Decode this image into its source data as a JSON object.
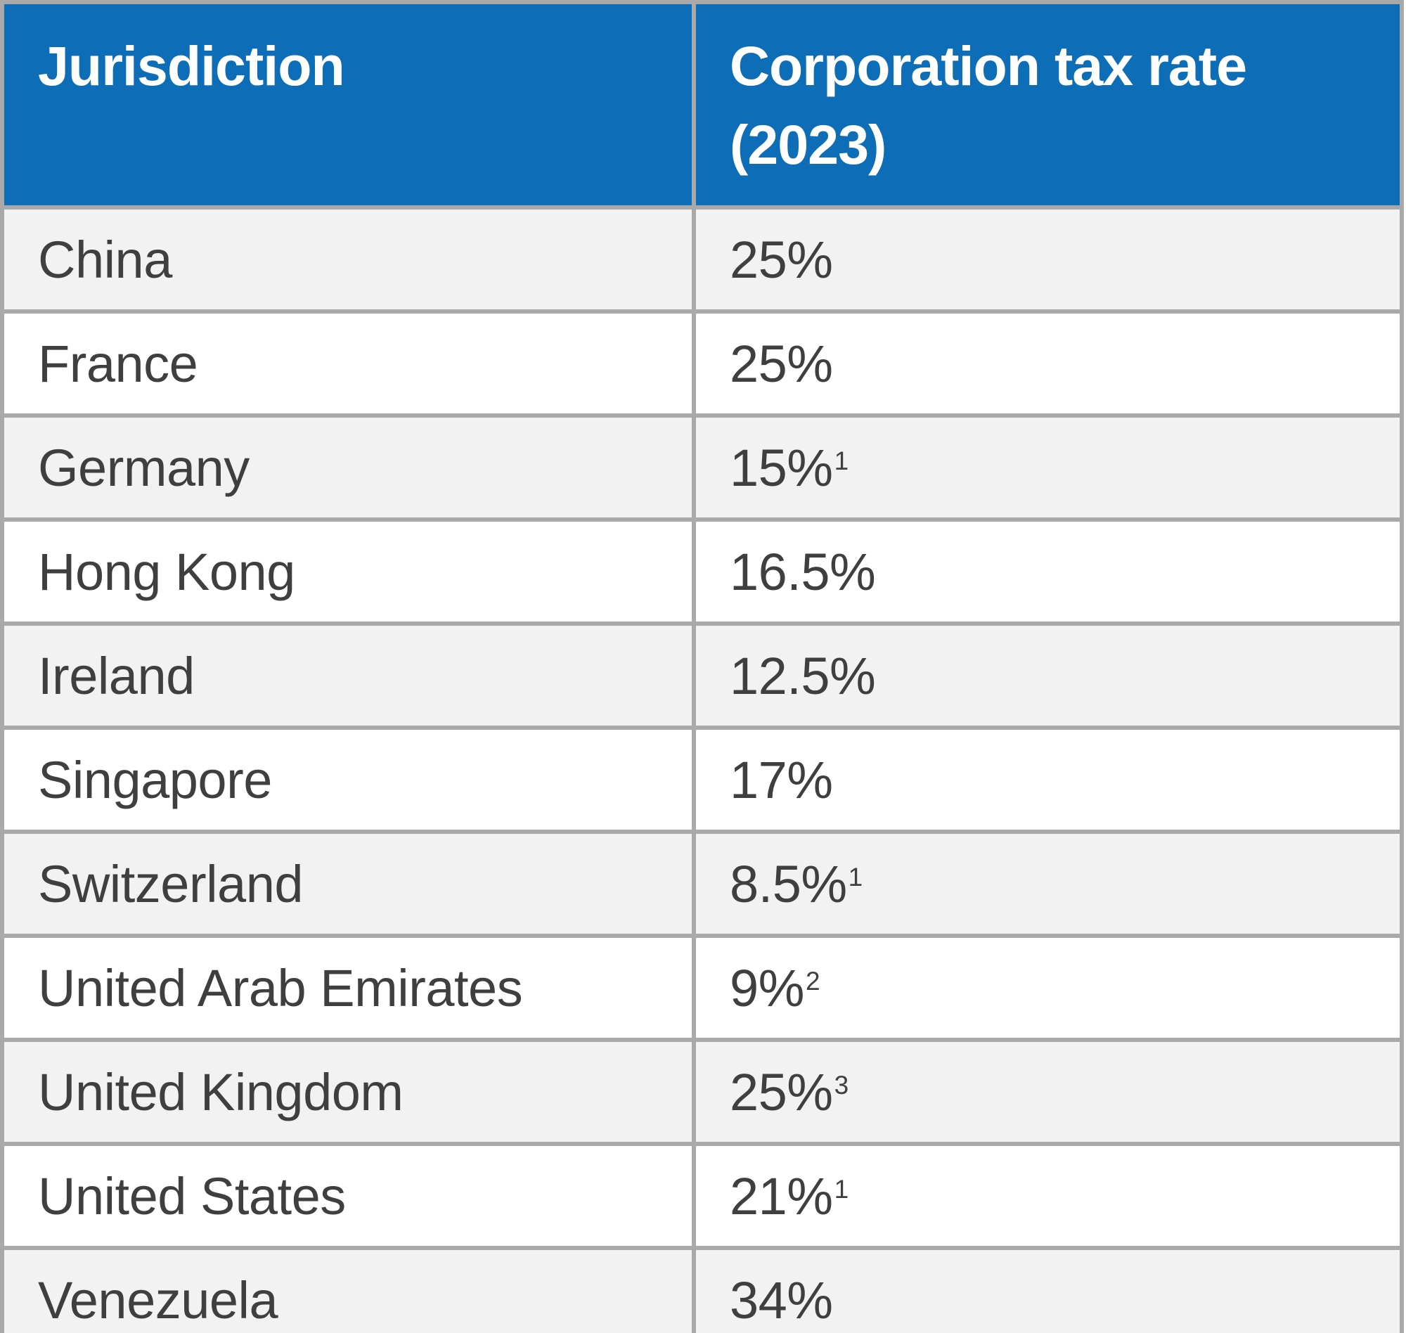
{
  "table": {
    "columns": [
      {
        "label": "Jurisdiction"
      },
      {
        "label": "Corporation tax rate (2023)"
      }
    ],
    "rows": [
      {
        "jurisdiction": "China",
        "rate": "25%",
        "footnote": ""
      },
      {
        "jurisdiction": "France",
        "rate": "25%",
        "footnote": ""
      },
      {
        "jurisdiction": "Germany",
        "rate": "15%",
        "footnote": "1"
      },
      {
        "jurisdiction": "Hong Kong",
        "rate": "16.5%",
        "footnote": ""
      },
      {
        "jurisdiction": "Ireland",
        "rate": "12.5%",
        "footnote": ""
      },
      {
        "jurisdiction": "Singapore",
        "rate": "17%",
        "footnote": ""
      },
      {
        "jurisdiction": "Switzerland",
        "rate": "8.5%",
        "footnote": "1"
      },
      {
        "jurisdiction": "United Arab Emirates",
        "rate": "9%",
        "footnote": "2"
      },
      {
        "jurisdiction": "United Kingdom",
        "rate": "25%",
        "footnote": "3"
      },
      {
        "jurisdiction": "United States",
        "rate": "21%",
        "footnote": "1"
      },
      {
        "jurisdiction": "Venezuela",
        "rate": "34%",
        "footnote": ""
      }
    ],
    "colors": {
      "header_bg": "#0d6db6",
      "header_text": "#ffffff",
      "row_alt_bg": "#f2f2f2",
      "row_bg": "#ffffff",
      "border": "#a9a9a9",
      "text": "#3f3f3f"
    }
  }
}
